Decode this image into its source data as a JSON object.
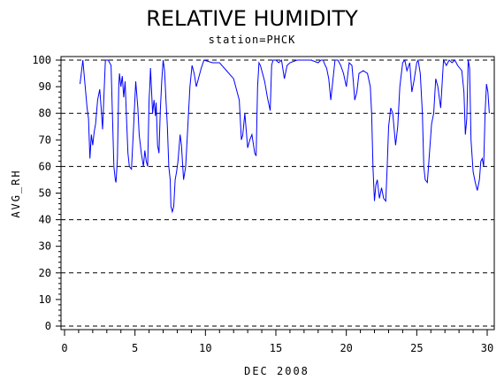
{
  "chart_data": {
    "type": "line",
    "title": "RELATIVE HUMIDITY",
    "subtitle": "station=PHCK",
    "xlabel": "DEC 2008",
    "ylabel": "AVG_RH",
    "xlim": [
      0,
      30
    ],
    "ylim": [
      0,
      100
    ],
    "xticks": [
      "0",
      "5",
      "10",
      "15",
      "20",
      "25",
      "30"
    ],
    "yticks": [
      "0",
      "10",
      "20",
      "30",
      "40",
      "50",
      "60",
      "70",
      "80",
      "90",
      "100"
    ],
    "reference_lines": [
      0,
      20,
      40,
      60,
      80,
      100
    ],
    "grid": "dashed horizontal reference lines",
    "line_color": "#0000ff",
    "series": [
      {
        "x": [
          1.1,
          1.3,
          1.6,
          1.7,
          1.8,
          1.9,
          2.0,
          2.1,
          2.2,
          2.35,
          2.5,
          2.6,
          2.7,
          2.9,
          3.1,
          3.3,
          3.5,
          3.6,
          3.65,
          3.75,
          3.85,
          3.9,
          4.0,
          4.1,
          4.2,
          4.3,
          4.4,
          4.5,
          4.6,
          4.75,
          4.9,
          5.05,
          5.2,
          5.3,
          5.45,
          5.6,
          5.7,
          5.8,
          5.9,
          6.0,
          6.05,
          6.1,
          6.25,
          6.35,
          6.45,
          6.5,
          6.6,
          6.7,
          6.8,
          6.9,
          7.0,
          7.1,
          7.2,
          7.3,
          7.4,
          7.5,
          7.55,
          7.65,
          7.75,
          7.85,
          7.95,
          8.05,
          8.2,
          8.3,
          8.45,
          8.6,
          8.75,
          8.9,
          9.05,
          9.2,
          9.35,
          9.5,
          9.7,
          9.9,
          10.5,
          11.0,
          11.5,
          12.0,
          12.4,
          12.55,
          12.65,
          12.8,
          13.0,
          13.15,
          13.3,
          13.5,
          13.6,
          13.7,
          13.8,
          13.9,
          14.0,
          14.2,
          14.4,
          14.6,
          14.7,
          14.8,
          15.0,
          15.2,
          15.4,
          15.6,
          15.8,
          16.0,
          16.5,
          17.0,
          17.5,
          18.0,
          18.2,
          18.35,
          18.5,
          18.6,
          18.75,
          18.9,
          19.0,
          19.2,
          19.4,
          19.6,
          19.8,
          20.0,
          20.2,
          20.4,
          20.5,
          20.6,
          20.75,
          20.9,
          21.2,
          21.5,
          21.7,
          21.8,
          21.9,
          22.0,
          22.1,
          22.2,
          22.35,
          22.5,
          22.65,
          22.8,
          22.9,
          23.0,
          23.15,
          23.3,
          23.5,
          23.65,
          23.8,
          24.0,
          24.15,
          24.3,
          24.5,
          24.65,
          24.8,
          25.0,
          25.1,
          25.25,
          25.4,
          25.5,
          25.6,
          25.75,
          25.9,
          26.05,
          26.2,
          26.35,
          26.5,
          26.7,
          26.9,
          27.1,
          27.3,
          27.5,
          27.7,
          27.9,
          28.05,
          28.2,
          28.35,
          28.45,
          28.55,
          28.65,
          28.75,
          28.85,
          29.0,
          29.15,
          29.3,
          29.45,
          29.55,
          29.65,
          29.75,
          29.85,
          29.95,
          30.05,
          30.15
        ],
        "values": [
          91,
          100,
          82,
          78,
          63,
          72,
          68,
          73,
          76,
          85,
          89,
          82,
          74,
          100,
          100,
          98,
          60,
          55,
          54,
          63,
          90,
          95,
          90,
          94,
          86,
          92,
          78,
          65,
          60,
          59,
          75,
          92,
          82,
          72,
          65,
          60,
          66,
          62,
          60,
          85,
          90,
          97,
          80,
          85,
          79,
          84,
          68,
          65,
          81,
          92,
          100,
          96,
          85,
          75,
          60,
          55,
          45,
          43,
          45,
          55,
          58,
          62,
          72,
          68,
          55,
          60,
          75,
          90,
          98,
          95,
          90,
          93,
          97,
          100,
          99,
          99,
          96,
          93,
          85,
          70,
          72,
          80,
          67,
          70,
          72,
          65,
          64,
          90,
          99,
          98,
          96,
          92,
          86,
          81,
          98,
          100,
          100,
          99,
          100,
          93,
          98,
          99,
          100,
          100,
          100,
          99,
          100,
          100,
          98,
          97,
          93,
          85,
          90,
          100,
          100,
          98,
          95,
          90,
          99,
          98,
          92,
          85,
          88,
          95,
          96,
          95,
          90,
          80,
          59,
          47,
          53,
          55,
          48,
          52,
          48,
          47,
          60,
          75,
          82,
          80,
          68,
          75,
          90,
          99,
          100,
          96,
          99,
          88,
          92,
          99,
          100,
          95,
          80,
          60,
          55,
          54,
          65,
          76,
          80,
          93,
          90,
          82,
          100,
          98,
          100,
          99,
          100,
          98,
          97,
          96,
          88,
          72,
          78,
          100,
          97,
          70,
          58,
          54,
          51,
          55,
          62,
          63,
          60,
          80,
          91,
          88,
          80
        ]
      }
    ]
  }
}
